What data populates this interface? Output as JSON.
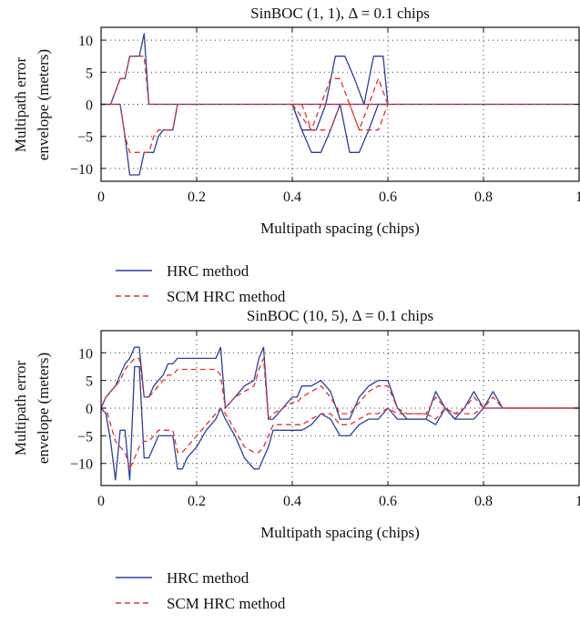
{
  "chart_data": [
    {
      "type": "line",
      "title": "SinBOC (1, 1), Δ = 0.1 chips",
      "xlabel": "Multipath spacing (chips)",
      "ylabel_line1": "Multipath error",
      "ylabel_line2": "envelope (meters)",
      "xlim": [
        0,
        1
      ],
      "ylim": [
        -12,
        12
      ],
      "grid": true,
      "legend_placement": "below",
      "x_ticks": [
        {
          "value": 0,
          "label": "0"
        },
        {
          "value": 0.2,
          "label": "0.2"
        },
        {
          "value": 0.4,
          "label": "0.4"
        },
        {
          "value": 0.6,
          "label": "0.6"
        },
        {
          "value": 0.8,
          "label": "0.8"
        },
        {
          "value": 1,
          "label": "1"
        }
      ],
      "y_ticks": [
        {
          "value": 10,
          "label": "10"
        },
        {
          "value": 5,
          "label": "5"
        },
        {
          "value": 0,
          "label": "0"
        },
        {
          "value": -5,
          "label": "−5"
        },
        {
          "value": -10,
          "label": "−10"
        }
      ],
      "series": [
        {
          "name": "HRC method",
          "color": "#2b3f9e",
          "dash": "solid",
          "lines": [
            {
              "x": [
                0,
                0.02,
                0.03,
                0.04,
                0.05,
                0.06,
                0.07,
                0.08,
                0.09,
                0.1,
                1
              ],
              "y": [
                0,
                0,
                2,
                4,
                4,
                7.5,
                7.5,
                7.5,
                11,
                0,
                0
              ]
            },
            {
              "x": [
                0,
                0.04,
                0.05,
                0.06,
                0.07,
                0.08,
                0.09,
                0.1,
                0.11,
                0.12,
                0.13,
                0.14,
                0.15,
                0.16
              ],
              "y": [
                0,
                0,
                -5,
                -11,
                -11,
                -11,
                -7.5,
                -7.5,
                -7.5,
                -5,
                -4,
                -4,
                -4,
                0
              ]
            },
            {
              "x": [
                0.4,
                0.42,
                0.45,
                0.47,
                0.49,
                0.51,
                0.53,
                0.55,
                0.57,
                0.59,
                0.6
              ],
              "y": [
                0,
                -4,
                -4,
                0,
                7.5,
                7.5,
                4,
                0,
                7.5,
                7.5,
                0
              ]
            },
            {
              "x": [
                0.4,
                0.42,
                0.44,
                0.46,
                0.48,
                0.5,
                0.52,
                0.54,
                0.56,
                0.58,
                0.6
              ],
              "y": [
                0,
                -4,
                -7.5,
                -7.5,
                -4,
                0,
                -7.5,
                -7.5,
                -4,
                0,
                0
              ]
            }
          ]
        },
        {
          "name": "SCM HRC method",
          "color": "#e33030",
          "dash": "dashed",
          "lines": [
            {
              "x": [
                0,
                0.02,
                0.03,
                0.04,
                0.05,
                0.06,
                0.07,
                0.08,
                0.09,
                0.1,
                1
              ],
              "y": [
                0,
                0,
                2,
                4,
                4,
                7.5,
                7.5,
                7.5,
                7.5,
                0,
                0
              ]
            },
            {
              "x": [
                0,
                0.04,
                0.05,
                0.06,
                0.07,
                0.08,
                0.09,
                0.1,
                0.11,
                0.12,
                0.13,
                0.14,
                0.15,
                0.16
              ],
              "y": [
                0,
                0,
                -5,
                -7.5,
                -7.5,
                -7.5,
                -7.5,
                -7.5,
                -5,
                -4,
                -4,
                -4,
                -4,
                0
              ]
            },
            {
              "x": [
                0.4,
                0.42,
                0.44,
                0.46,
                0.48,
                0.5,
                0.52,
                0.54,
                0.56,
                0.58,
                0.6
              ],
              "y": [
                0,
                -2,
                -4,
                0,
                4,
                4,
                0,
                -4,
                0,
                4,
                0
              ]
            },
            {
              "x": [
                0.4,
                0.42,
                0.44,
                0.46,
                0.48,
                0.5,
                0.52,
                0.54,
                0.56,
                0.58,
                0.6
              ],
              "y": [
                0,
                0,
                -4,
                -4,
                -4,
                0,
                0,
                -4,
                -4,
                -4,
                0
              ]
            }
          ]
        }
      ]
    },
    {
      "type": "line",
      "title": "SinBOC (10, 5), Δ = 0.1 chips",
      "xlabel": "Multipath spacing (chips)",
      "ylabel_line1": "Multipath error",
      "ylabel_line2": "envelope (meters)",
      "xlim": [
        0,
        1
      ],
      "ylim": [
        -14,
        14
      ],
      "grid": true,
      "legend_placement": "below",
      "x_ticks": [
        {
          "value": 0,
          "label": "0"
        },
        {
          "value": 0.2,
          "label": "0.2"
        },
        {
          "value": 0.4,
          "label": "0.4"
        },
        {
          "value": 0.6,
          "label": "0.6"
        },
        {
          "value": 0.8,
          "label": "0.8"
        },
        {
          "value": 1,
          "label": "1"
        }
      ],
      "y_ticks": [
        {
          "value": 10,
          "label": "10"
        },
        {
          "value": 5,
          "label": "5"
        },
        {
          "value": 0,
          "label": "0"
        },
        {
          "value": -5,
          "label": "−5"
        },
        {
          "value": -10,
          "label": "−10"
        }
      ],
      "series": [
        {
          "name": "HRC method",
          "color": "#2b3f9e",
          "dash": "solid",
          "lines": [
            {
              "x": [
                0,
                0.01,
                0.02,
                0.03,
                0.04,
                0.05,
                0.06,
                0.07,
                0.08,
                0.09,
                0.1,
                0.11,
                0.12,
                0.13,
                0.14,
                0.15,
                0.16,
                0.17,
                0.18,
                0.2,
                0.22,
                0.24,
                0.25,
                0.26,
                0.28,
                0.3,
                0.32,
                0.33,
                0.34,
                0.35,
                0.36,
                0.38,
                0.4,
                0.41,
                0.42,
                0.44,
                0.46,
                0.48,
                0.5,
                0.52,
                0.54,
                0.56,
                0.58,
                0.6,
                0.62,
                0.64,
                0.66,
                0.68,
                0.7,
                0.72,
                0.74,
                0.76,
                0.78,
                0.8,
                0.82,
                0.84,
                1
              ],
              "y": [
                0,
                2,
                3,
                4,
                6,
                8,
                9,
                11,
                11,
                2,
                2,
                4,
                5,
                6,
                8,
                8,
                9,
                9,
                9,
                9,
                9,
                9,
                11,
                0,
                2,
                4,
                5,
                9,
                11,
                -2,
                -2,
                0,
                2,
                2,
                4,
                4,
                5,
                3,
                -2,
                -2,
                2,
                4,
                5,
                5,
                0,
                -2,
                -2,
                -2,
                3,
                0,
                -2,
                0,
                3,
                0,
                3,
                0,
                0
              ]
            },
            {
              "x": [
                0,
                0.01,
                0.02,
                0.03,
                0.04,
                0.05,
                0.06,
                0.07,
                0.08,
                0.09,
                0.1,
                0.11,
                0.12,
                0.13,
                0.14,
                0.15,
                0.16,
                0.17,
                0.18,
                0.2,
                0.22,
                0.24,
                0.25,
                0.26,
                0.28,
                0.3,
                0.32,
                0.33,
                0.34,
                0.35,
                0.36,
                0.38,
                0.4,
                0.42,
                0.44,
                0.46,
                0.48,
                0.5,
                0.52,
                0.54,
                0.56,
                0.58,
                0.6,
                0.62,
                0.64,
                0.66,
                0.68,
                0.7,
                0.72,
                0.74,
                0.76,
                0.78,
                0.8,
                0.82,
                0.84,
                1
              ],
              "y": [
                0,
                -1,
                -6,
                -13,
                -4,
                -4,
                -13,
                7.5,
                7.5,
                -9,
                -9,
                -7,
                -5,
                -5,
                -5,
                -5,
                -11,
                -11,
                -9,
                -7,
                -4,
                -2,
                0,
                -2,
                -5,
                -9,
                -11,
                -11,
                -9,
                -7,
                -4,
                -4,
                -4,
                -4,
                -3,
                -1,
                -2,
                -5,
                -5,
                -3,
                -2,
                -2,
                0,
                -2,
                -2,
                -2,
                -2,
                -3,
                0,
                -2,
                -2,
                -2,
                0,
                0,
                0,
                0
              ]
            }
          ]
        },
        {
          "name": "SCM HRC method",
          "color": "#e33030",
          "dash": "dashed",
          "lines": [
            {
              "x": [
                0,
                0.01,
                0.02,
                0.03,
                0.04,
                0.05,
                0.06,
                0.07,
                0.08,
                0.09,
                0.1,
                0.11,
                0.12,
                0.13,
                0.14,
                0.15,
                0.16,
                0.17,
                0.18,
                0.2,
                0.22,
                0.24,
                0.25,
                0.26,
                0.28,
                0.3,
                0.32,
                0.33,
                0.34,
                0.35,
                0.36,
                0.38,
                0.4,
                0.41,
                0.42,
                0.44,
                0.46,
                0.48,
                0.5,
                0.52,
                0.54,
                0.56,
                0.58,
                0.6,
                0.62,
                0.64,
                0.66,
                0.68,
                0.7,
                0.72,
                0.74,
                0.76,
                0.78,
                0.8,
                0.82,
                0.84,
                1
              ],
              "y": [
                0,
                2,
                3,
                4,
                5,
                7,
                8,
                9,
                9,
                2,
                2,
                3,
                4,
                5,
                6,
                6,
                7,
                7,
                7,
                7,
                7,
                7,
                6,
                0,
                2,
                3,
                4,
                7,
                9,
                -2,
                -1,
                0,
                1,
                1,
                2,
                3,
                4,
                2,
                -1,
                -1,
                1,
                3,
                4,
                4,
                0,
                -1,
                -1,
                -1,
                2,
                0,
                -1,
                0,
                2,
                0,
                2,
                0,
                0
              ]
            },
            {
              "x": [
                0,
                0.01,
                0.02,
                0.03,
                0.04,
                0.05,
                0.06,
                0.07,
                0.08,
                0.09,
                0.1,
                0.11,
                0.12,
                0.13,
                0.14,
                0.15,
                0.16,
                0.17,
                0.18,
                0.2,
                0.22,
                0.24,
                0.25,
                0.26,
                0.28,
                0.3,
                0.32,
                0.33,
                0.34,
                0.35,
                0.36,
                0.38,
                0.4,
                0.42,
                0.44,
                0.46,
                0.48,
                0.5,
                0.52,
                0.54,
                0.56,
                0.58,
                0.6,
                0.62,
                0.64,
                0.66,
                0.68,
                0.7,
                0.72,
                0.74,
                0.76,
                0.78,
                0.8,
                0.82,
                0.84,
                1
              ],
              "y": [
                0,
                0,
                -3,
                -6,
                -7,
                -8,
                -11,
                -9,
                -7,
                -6,
                -6,
                -5,
                -4,
                -4,
                -4,
                -4,
                -8,
                -8,
                -7,
                -5,
                -3,
                -1,
                0,
                -1,
                -4,
                -7,
                -8,
                -8,
                -7,
                -5,
                -3,
                -3,
                -3,
                -3,
                -2,
                -1,
                -1,
                -3,
                -3,
                -2,
                -1,
                -1,
                0,
                -1,
                -1,
                -1,
                -1,
                -2,
                0,
                -1,
                -1,
                -1,
                0,
                0,
                0,
                0
              ]
            }
          ]
        }
      ]
    }
  ]
}
